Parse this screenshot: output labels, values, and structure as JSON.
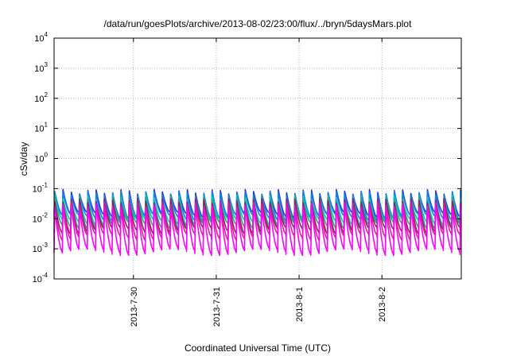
{
  "chart_data": {
    "type": "line",
    "title": "/data/run/goesPlots/archive/2013-08-02/23:00/flux/../bryn/5daysMars.plot",
    "xlabel": "Coordinated Universal Time (UTC)",
    "ylabel": "cSv/day",
    "yscale": "log",
    "ylim": [
      0.0001,
      10000
    ],
    "xlim": [
      "2013-07-29 01:00",
      "2013-08-02 23:00"
    ],
    "grid": true,
    "y_ticks": [
      {
        "base": "10",
        "exp": "-4"
      },
      {
        "base": "10",
        "exp": "-3"
      },
      {
        "base": "10",
        "exp": "-2"
      },
      {
        "base": "10",
        "exp": "-1"
      },
      {
        "base": "10",
        "exp": "0"
      },
      {
        "base": "10",
        "exp": "1"
      },
      {
        "base": "10",
        "exp": "2"
      },
      {
        "base": "10",
        "exp": "3"
      },
      {
        "base": "10",
        "exp": "4"
      }
    ],
    "x_ticks": [
      "2013-7-30",
      "2013-7-31",
      "2013-8-1",
      "2013-8-2"
    ],
    "pulses_per_day": 10,
    "series": [
      {
        "color": "#1f3fd6",
        "peak": 0.08,
        "trough": 0.013
      },
      {
        "color": "#1a7fe6",
        "peak": 0.07,
        "trough": 0.011
      },
      {
        "color": "#00c8c8",
        "peak": 0.05,
        "trough": 0.008
      },
      {
        "color": "#2aa86a",
        "peak": 0.045,
        "trough": 0.006
      },
      {
        "color": "#8a1f7a",
        "peak": 0.04,
        "trough": 0.004
      },
      {
        "color": "#e0208a",
        "peak": 0.03,
        "trough": 0.0025
      },
      {
        "color": "#ff00ff",
        "peak": 0.025,
        "trough": 0.0008
      }
    ]
  }
}
